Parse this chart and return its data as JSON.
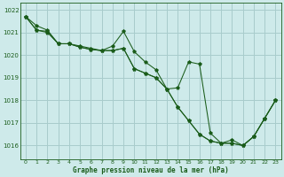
{
  "title": "Graphe pression niveau de la mer (hPa)",
  "bg_color": "#ceeaea",
  "grid_color": "#a8cccc",
  "line_color": "#1a5c1a",
  "ylim": [
    1015.4,
    1022.3
  ],
  "xlim": [
    -0.5,
    23.5
  ],
  "yticks": [
    1016,
    1017,
    1018,
    1019,
    1020,
    1021,
    1022
  ],
  "xticks": [
    0,
    1,
    2,
    3,
    4,
    5,
    6,
    7,
    8,
    9,
    10,
    11,
    12,
    13,
    14,
    15,
    16,
    17,
    18,
    19,
    20,
    21,
    22,
    23
  ],
  "series1": [
    1021.7,
    1021.3,
    1021.1,
    1020.5,
    1020.5,
    1020.4,
    1020.3,
    1020.2,
    1020.2,
    1020.3,
    1019.4,
    1019.2,
    1019.0,
    1018.5,
    1017.7,
    1017.1,
    1016.5,
    1016.2,
    1016.1,
    1016.1,
    1016.0,
    1016.4,
    1017.2,
    1018.0
  ],
  "series2": [
    1021.7,
    1021.1,
    1021.05,
    1020.5,
    1020.5,
    1020.35,
    1020.25,
    1020.2,
    1020.4,
    1021.05,
    1020.15,
    1019.7,
    1019.35,
    1018.5,
    1018.55,
    1019.7,
    1019.6,
    1016.55,
    1016.1,
    1016.25,
    1016.0,
    1016.4,
    1017.2,
    1018.0
  ],
  "series3": [
    1021.7,
    1021.1,
    1021.0,
    1020.5,
    1020.5,
    1020.35,
    1020.25,
    1020.2,
    1020.2,
    1020.3,
    1019.4,
    1019.2,
    1019.0,
    1018.5,
    1017.7,
    1017.1,
    1016.5,
    1016.2,
    1016.1,
    1016.1,
    1016.0,
    1016.4,
    1017.2,
    1018.0
  ]
}
